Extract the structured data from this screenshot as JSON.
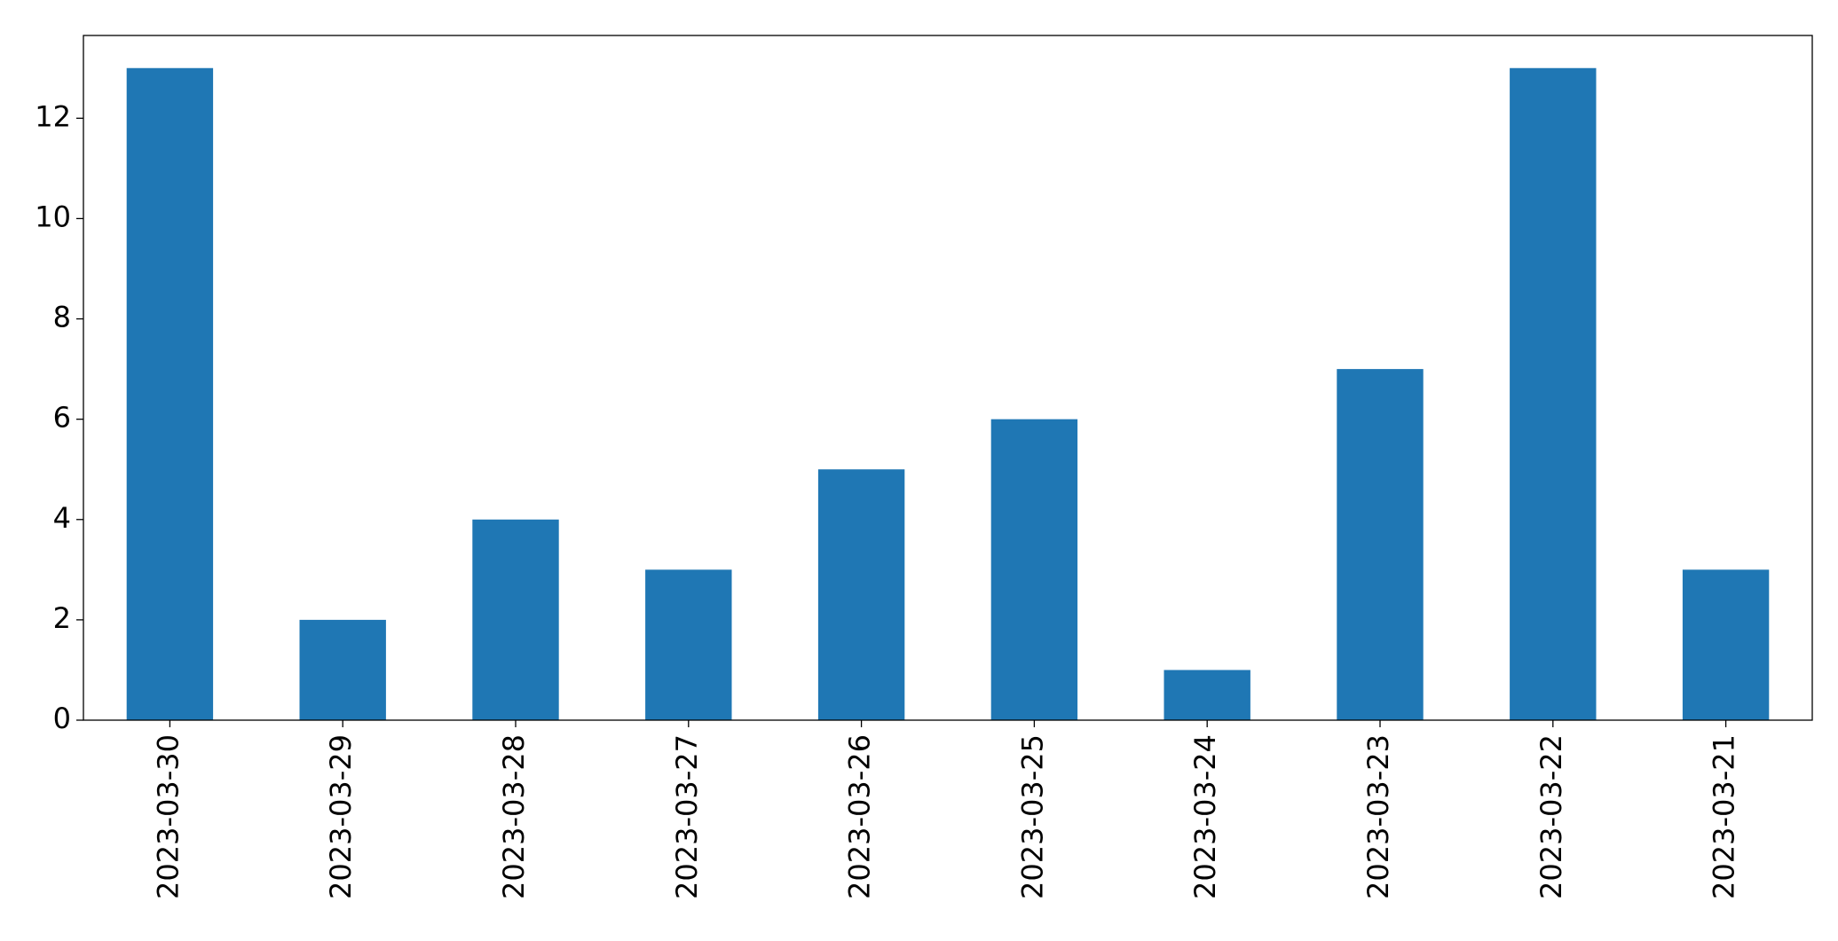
{
  "chart_data": {
    "type": "bar",
    "categories": [
      "2023-03-30",
      "2023-03-29",
      "2023-03-28",
      "2023-03-27",
      "2023-03-26",
      "2023-03-25",
      "2023-03-24",
      "2023-03-23",
      "2023-03-22",
      "2023-03-21"
    ],
    "values": [
      13,
      2,
      4,
      3,
      5,
      6,
      1,
      7,
      13,
      3
    ],
    "color": "#1f77b4",
    "ylim": [
      0,
      13.65
    ],
    "yticks": [
      0,
      2,
      4,
      6,
      8,
      10,
      12
    ],
    "grid": false
  }
}
